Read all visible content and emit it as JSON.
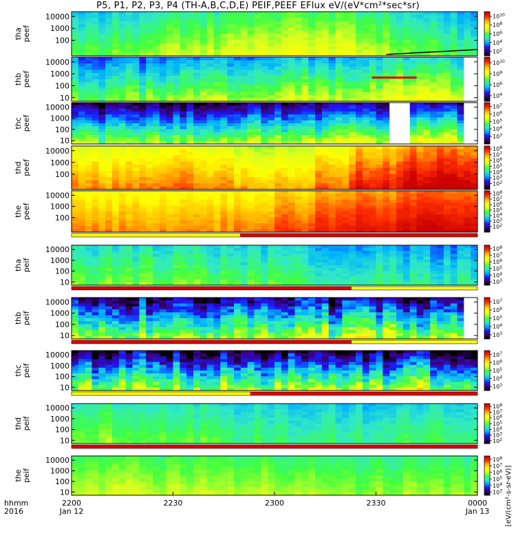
{
  "chart_data": {
    "type": "heatmap",
    "title": "P5, P1, P2, P3, P4 (TH-A,B,C,D,E) PEIF,PEEF EFlux eV/(eV*cm²*sec*sr)",
    "xlabel": "hhmm\n2016",
    "x_axis_corner": [
      "hhmm",
      "2016"
    ],
    "x_ticks": [
      {
        "label": "2200",
        "sublabel": "Jan 12",
        "hours": 0
      },
      {
        "label": "2230",
        "sublabel": "",
        "hours": 0.5
      },
      {
        "label": "2300",
        "sublabel": "",
        "hours": 1.0
      },
      {
        "label": "2330",
        "sublabel": "",
        "hours": 1.5
      },
      {
        "label": "0000",
        "sublabel": "Jan 13",
        "hours": 2.0
      }
    ],
    "x_range_hours": [
      0,
      2
    ],
    "colorbar_label": "[eV/(cm²-s-sr-eV)]",
    "colormap": [
      "#000000",
      "#3a007a",
      "#1a1aff",
      "#00b0ff",
      "#30e8c8",
      "#40ff40",
      "#d8ff20",
      "#ffff00",
      "#ffb000",
      "#ff3000",
      "#cc0000"
    ],
    "panels": [
      {
        "ylabel": [
          "tha",
          "peef"
        ],
        "yticks": [
          100,
          1000,
          10000
        ],
        "cbar_ticks": [
          2,
          4,
          6,
          8,
          10
        ],
        "cbar_range": [
          1,
          11
        ],
        "base": [
          0.42,
          0.45,
          0.5,
          0.52,
          0.55,
          0.58,
          0.55,
          0.5,
          0.45,
          0.4
        ],
        "grad": 0.18,
        "noise": 0.08,
        "line": "black",
        "flag": null
      },
      {
        "ylabel": [
          "thb",
          "peef"
        ],
        "yticks": [
          10,
          100,
          1000,
          10000
        ],
        "cbar_ticks": [
          4,
          6,
          8,
          10
        ],
        "cbar_range": [
          3,
          11
        ],
        "base": [
          0.38,
          0.4,
          0.42,
          0.44,
          0.45,
          0.46,
          0.48,
          0.5,
          0.52,
          0.5
        ],
        "grad": 0.3,
        "noise": 0.12,
        "blanks": [
          [
            1.93,
            2.0
          ]
        ],
        "stripe": [
          1.48,
          1.7
        ],
        "flag": null
      },
      {
        "ylabel": [
          "thc",
          "peef"
        ],
        "yticks": [
          10,
          100,
          1000,
          10000
        ],
        "cbar_ticks": [
          3,
          4,
          5,
          6,
          7
        ],
        "cbar_range": [
          2,
          7.5
        ],
        "base": [
          0.3,
          0.3,
          0.32,
          0.32,
          0.33,
          0.34,
          0.35,
          0.36,
          0.37,
          0.38
        ],
        "grad": 0.55,
        "noise": 0.15,
        "blanks": [
          [
            1.58,
            1.68
          ],
          [
            1.93,
            2.0
          ]
        ],
        "flag": null
      },
      {
        "ylabel": [
          "thd",
          "peef"
        ],
        "yticks": [
          100,
          1000,
          10000
        ],
        "cbar_ticks": [
          2,
          3,
          4,
          5,
          6,
          7,
          8
        ],
        "cbar_range": [
          1,
          8.5
        ],
        "base": [
          0.72,
          0.74,
          0.76,
          0.72,
          0.68,
          0.7,
          0.78,
          0.85,
          0.9,
          0.92
        ],
        "grad": 0.22,
        "noise": 0.08,
        "flag": null
      },
      {
        "ylabel": [
          "the",
          "peef"
        ],
        "yticks": [
          100,
          1000,
          10000
        ],
        "cbar_ticks": [
          2,
          3,
          4,
          5,
          6,
          7,
          8
        ],
        "cbar_range": [
          1,
          8.5
        ],
        "base": [
          0.75,
          0.76,
          0.77,
          0.76,
          0.78,
          0.82,
          0.86,
          0.9,
          0.92,
          0.93
        ],
        "grad": 0.15,
        "noise": 0.06,
        "flag": {
          "segments": [
            {
              "from": 0,
              "to": 0.83,
              "color": "#ffff00"
            },
            {
              "from": 0.83,
              "to": 2.0,
              "color": "#e00000"
            }
          ]
        }
      },
      {
        "ylabel": [
          "tha",
          "peif"
        ],
        "yticks": [
          10,
          100,
          1000,
          10000
        ],
        "cbar_ticks": [
          3,
          4,
          5,
          6,
          7,
          8
        ],
        "cbar_range": [
          2.5,
          8.5
        ],
        "base": [
          0.45,
          0.46,
          0.45,
          0.44,
          0.42,
          0.42,
          0.4,
          0.38,
          0.36,
          0.35
        ],
        "grad": 0.15,
        "noise": 0.1,
        "flag": {
          "segments": [
            {
              "from": 0,
              "to": 1.38,
              "color": "#e00000"
            },
            {
              "from": 1.38,
              "to": 2.0,
              "color": "#ffff00"
            }
          ]
        }
      },
      {
        "ylabel": [
          "thb",
          "peif"
        ],
        "yticks": [
          10,
          100,
          1000,
          10000
        ],
        "cbar_ticks": [
          3,
          4,
          5,
          6,
          7
        ],
        "cbar_range": [
          2.5,
          7.5
        ],
        "base": [
          0.35,
          0.35,
          0.35,
          0.35,
          0.35,
          0.35,
          0.35,
          0.35,
          0.35,
          0.35
        ],
        "grad": 0.5,
        "noise": 0.25,
        "blanks": [
          [
            1.93,
            2.0
          ]
        ],
        "flag": {
          "segments": [
            {
              "from": 0,
              "to": 1.38,
              "color": "#e00000"
            },
            {
              "from": 1.38,
              "to": 2.0,
              "color": "#ffff00"
            }
          ]
        }
      },
      {
        "ylabel": [
          "thc",
          "peif"
        ],
        "yticks": [
          10,
          100,
          1000,
          10000
        ],
        "cbar_ticks": [
          3,
          4,
          5,
          6,
          7
        ],
        "cbar_range": [
          2.5,
          7.5
        ],
        "base": [
          0.32,
          0.32,
          0.32,
          0.32,
          0.32,
          0.32,
          0.32,
          0.32,
          0.32,
          0.32
        ],
        "grad": 0.55,
        "noise": 0.25,
        "flag": {
          "segments": [
            {
              "from": 0,
              "to": 0.88,
              "color": "#ffff00"
            },
            {
              "from": 0.88,
              "to": 2.0,
              "color": "#e00000"
            }
          ]
        }
      },
      {
        "ylabel": [
          "thd",
          "peif"
        ],
        "yticks": [
          10,
          100,
          1000,
          10000
        ],
        "cbar_ticks": [
          2,
          3,
          4,
          5,
          6,
          7,
          8
        ],
        "cbar_range": [
          1.5,
          8.5
        ],
        "base": [
          0.5,
          0.48,
          0.46,
          0.45,
          0.43,
          0.4,
          0.4,
          0.4,
          0.42,
          0.42
        ],
        "grad": 0.12,
        "noise": 0.08,
        "flag": {
          "segments": [
            {
              "from": 0,
              "to": 2.0,
              "color": "#e00000"
            }
          ]
        }
      },
      {
        "ylabel": [
          "the",
          "peif"
        ],
        "yticks": [
          10,
          100,
          1000,
          10000
        ],
        "cbar_ticks": [
          3,
          4,
          5,
          6,
          7,
          8
        ],
        "cbar_range": [
          2.5,
          8.5
        ],
        "base": [
          0.55,
          0.55,
          0.54,
          0.54,
          0.53,
          0.52,
          0.52,
          0.5,
          0.5,
          0.5
        ],
        "grad": 0.12,
        "noise": 0.06,
        "flag": null
      }
    ]
  }
}
